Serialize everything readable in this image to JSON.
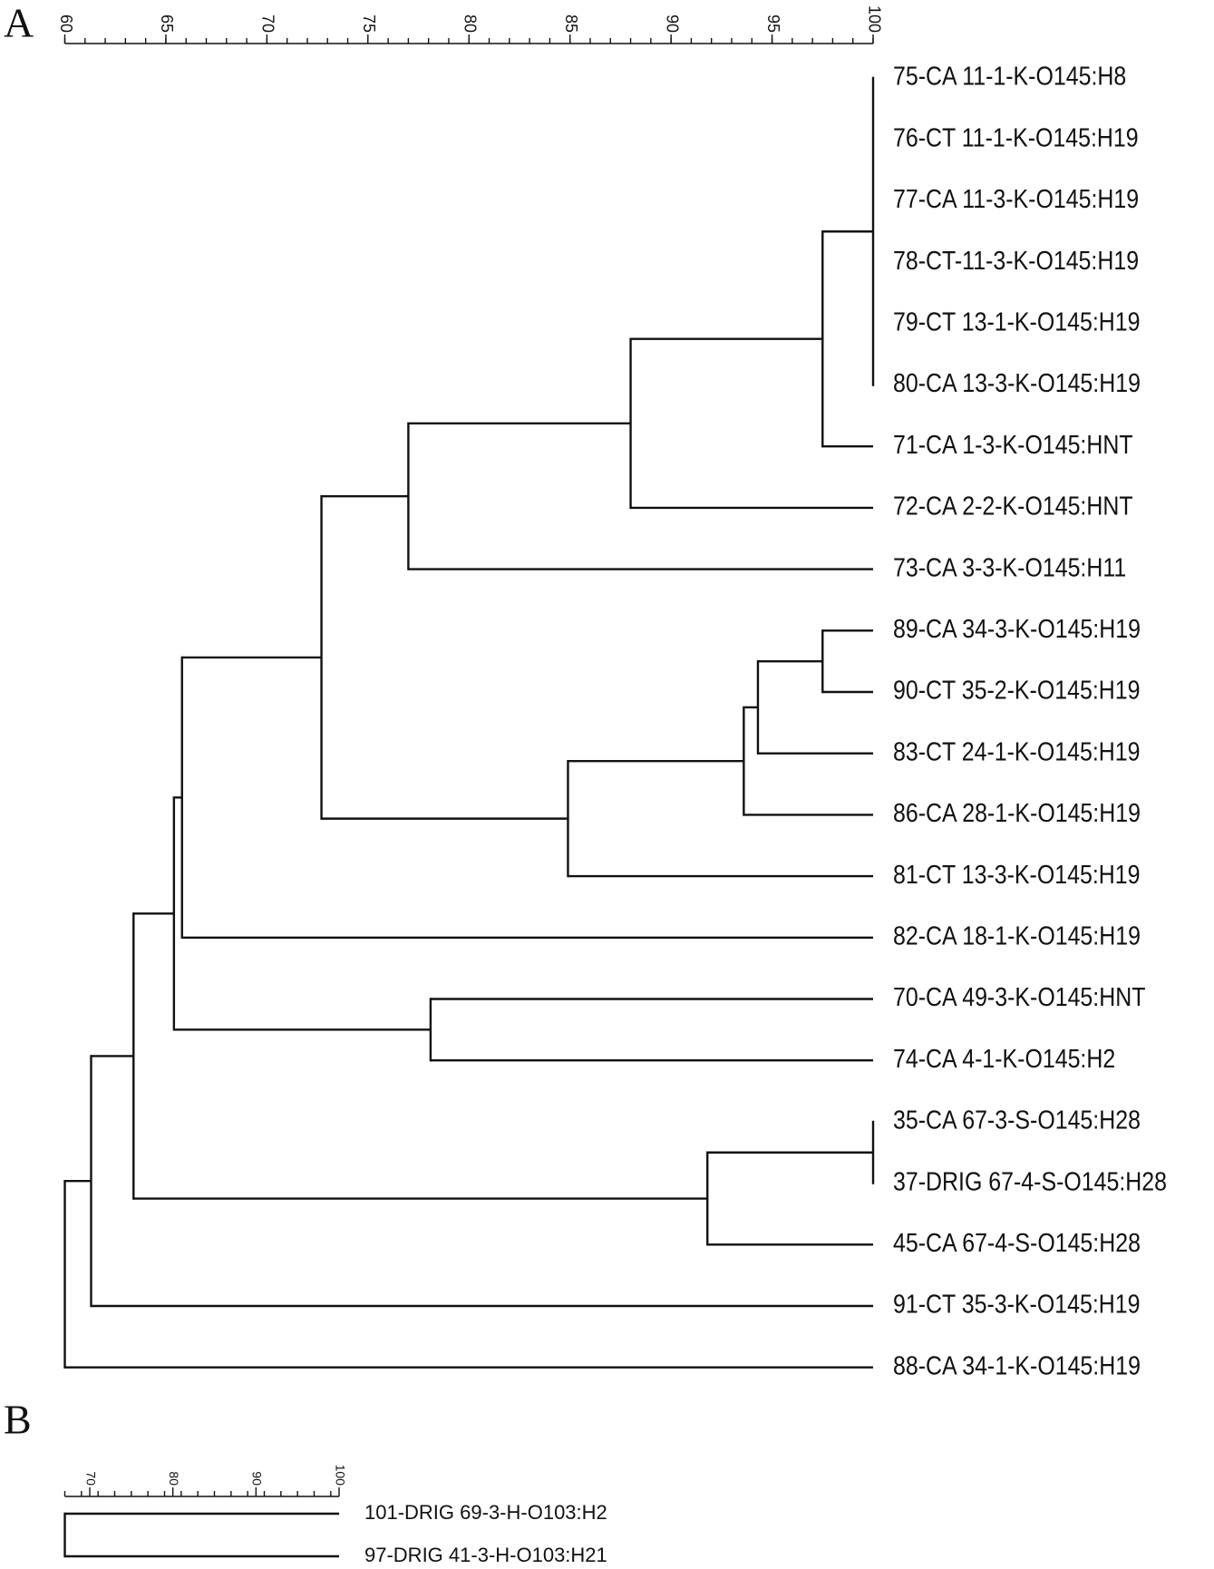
{
  "chart_data": [
    {
      "type": "dendrogram",
      "label": "A",
      "xlim": [
        60,
        100
      ],
      "xticks": [
        60,
        65,
        70,
        75,
        80,
        85,
        90,
        95,
        100
      ],
      "minor_step": 1,
      "tree": {
        "value": 60,
        "children": [
          {
            "value": 61.3,
            "children": [
              {
                "value": 63.4,
                "children": [
                  {
                    "value": 65.4,
                    "children": [
                      {
                        "value": 65.8,
                        "children": [
                          {
                            "value": 72.7,
                            "children": [
                              {
                                "value": 77.0,
                                "children": [
                                  {
                                    "value": 88.0,
                                    "children": [
                                      {
                                        "value": 97.5,
                                        "children": [
                                          {
                                            "value": 100,
                                            "children": [
                                              {
                                                "label": "75-CA 11-1-K-O145:H8"
                                              },
                                              {
                                                "label": "76-CT 11-1-K-O145:H19"
                                              },
                                              {
                                                "label": "77-CA 11-3-K-O145:H19"
                                              },
                                              {
                                                "label": "78-CT-11-3-K-O145:H19"
                                              },
                                              {
                                                "label": "79-CT 13-1-K-O145:H19"
                                              },
                                              {
                                                "label": "80-CA 13-3-K-O145:H19"
                                              }
                                            ]
                                          },
                                          {
                                            "label": "71-CA 1-3-K-O145:HNT"
                                          }
                                        ]
                                      },
                                      {
                                        "label": "72-CA 2-2-K-O145:HNT"
                                      }
                                    ]
                                  },
                                  {
                                    "label": "73-CA 3-3-K-O145:H11"
                                  }
                                ]
                              },
                              {
                                "value": 84.9,
                                "children": [
                                  {
                                    "value": 93.6,
                                    "children": [
                                      {
                                        "value": 94.3,
                                        "children": [
                                          {
                                            "value": 97.5,
                                            "children": [
                                              {
                                                "label": "89-CA 34-3-K-O145:H19"
                                              },
                                              {
                                                "label": "90-CT 35-2-K-O145:H19"
                                              }
                                            ]
                                          },
                                          {
                                            "label": "83-CT 24-1-K-O145:H19"
                                          }
                                        ]
                                      },
                                      {
                                        "label": "86-CA 28-1-K-O145:H19"
                                      }
                                    ]
                                  },
                                  {
                                    "label": "81-CT 13-3-K-O145:H19"
                                  }
                                ]
                              }
                            ]
                          },
                          {
                            "label": "82-CA 18-1-K-O145:H19"
                          }
                        ]
                      },
                      {
                        "value": 78.1,
                        "children": [
                          {
                            "label": "70-CA 49-3-K-O145:HNT"
                          },
                          {
                            "label": "74-CA 4-1-K-O145:H2"
                          }
                        ]
                      }
                    ]
                  },
                  {
                    "value": 91.8,
                    "children": [
                      {
                        "value": 100,
                        "children": [
                          {
                            "label": "35-CA 67-3-S-O145:H28"
                          },
                          {
                            "label": "37-DRIG 67-4-S-O145:H28"
                          }
                        ]
                      },
                      {
                        "label": "45-CA 67-4-S-O145:H28"
                      }
                    ]
                  }
                ]
              },
              {
                "label": "91-CT 35-3-K-O145:H19"
              }
            ]
          },
          {
            "label": "88-CA 34-1-K-O145:H19"
          }
        ]
      }
    },
    {
      "type": "dendrogram",
      "label": "B",
      "xlim": [
        67,
        100
      ],
      "xticks": [
        70,
        80,
        90,
        100
      ],
      "minor_step": 2,
      "tree": {
        "value": 67,
        "children": [
          {
            "label": "101-DRIG 69-3-H-O103:H2"
          },
          {
            "label": "97-DRIG 41-3-H-O103:H21"
          }
        ]
      }
    }
  ]
}
